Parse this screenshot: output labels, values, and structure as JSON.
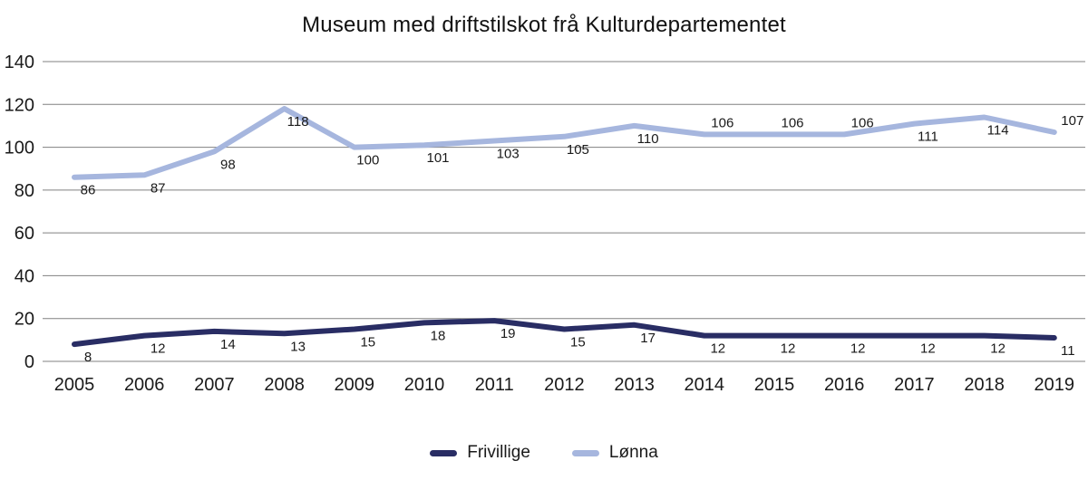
{
  "chart_data": {
    "type": "line",
    "title": "Museum med driftstilskot frå Kulturdepartementet",
    "x": [
      "2005",
      "2006",
      "2007",
      "2008",
      "2009",
      "2010",
      "2011",
      "2012",
      "2013",
      "2014",
      "2015",
      "2016",
      "2017",
      "2018",
      "2019"
    ],
    "xlabel": "",
    "ylabel": "",
    "ylim": [
      0,
      140
    ],
    "yticks": [
      0,
      20,
      40,
      60,
      80,
      100,
      120,
      140
    ],
    "grid": "horizontal",
    "legend_position": "bottom-center",
    "background_color": "#ffffff",
    "gridline_color": "#808080",
    "text_color": "#1a1a1a",
    "data_labels_shown": true,
    "series": [
      {
        "name": "Frivillige",
        "color": "#292d64",
        "values": [
          8,
          12,
          14,
          13,
          15,
          18,
          19,
          15,
          17,
          12,
          12,
          12,
          12,
          12,
          11
        ],
        "label_positions": [
          "below",
          "below",
          "below",
          "below",
          "below",
          "below",
          "below",
          "below",
          "below",
          "below",
          "below",
          "below",
          "below",
          "below",
          "below"
        ]
      },
      {
        "name": "Lønna",
        "color": "#a6b6de",
        "values": [
          86,
          87,
          98,
          118,
          100,
          101,
          103,
          105,
          110,
          106,
          106,
          106,
          111,
          114,
          107
        ],
        "label_positions": [
          "below",
          "below",
          "below",
          "below",
          "below",
          "below",
          "below",
          "below",
          "below",
          "above",
          "above",
          "above",
          "below",
          "below",
          "above"
        ]
      }
    ]
  }
}
